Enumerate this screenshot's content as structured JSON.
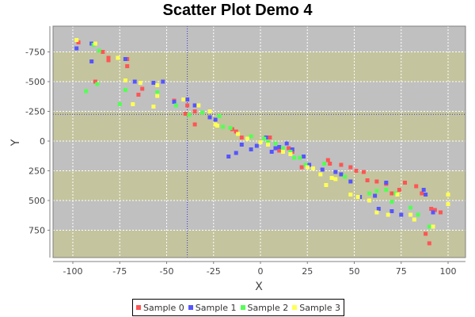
{
  "chart": {
    "title": "Scatter Plot Demo 4",
    "xlabel": "X",
    "ylabel": "Y"
  },
  "colors": {
    "band_gray": "#c0c0c0",
    "band_olive": "#c4c49e",
    "gridline": "#ffffff",
    "crosshair": "#3b3bd6",
    "axis_line": "#808080",
    "plot_border": "#808080"
  },
  "legend": {
    "items": [
      {
        "label": "Sample 0",
        "color": "#ff5555"
      },
      {
        "label": "Sample 1",
        "color": "#5555ff"
      },
      {
        "label": "Sample 2",
        "color": "#55ff55"
      },
      {
        "label": "Sample 3",
        "color": "#ffff55"
      }
    ]
  },
  "chart_data": {
    "type": "scatter",
    "title": "Scatter Plot Demo 4",
    "xlabel": "X",
    "ylabel": "Y",
    "xlim": [
      -105,
      105
    ],
    "ylim": [
      -940,
      980
    ],
    "y_inverted": true,
    "x_ticks": [
      -100,
      -75,
      -50,
      -25,
      0,
      25,
      50,
      75,
      100
    ],
    "x_tick_labels": [
      "-100",
      "-75",
      "-50",
      "-25",
      "0",
      "25",
      "50",
      "75",
      "100"
    ],
    "y_ticks": [
      -750,
      -500,
      -250,
      0,
      250,
      500,
      750
    ],
    "y_tick_labels": [
      "-750",
      "-500",
      "-250",
      "0",
      "250",
      "500",
      "750"
    ],
    "grid": true,
    "crosshair": {
      "x": -39,
      "y": -225
    },
    "legend_position": "bottom",
    "series": [
      {
        "name": "Sample 0",
        "color": "#ff5555",
        "points": [
          [
            -97,
            -830
          ],
          [
            -84,
            -750
          ],
          [
            -81,
            -700
          ],
          [
            -71,
            -690
          ],
          [
            -71,
            -630
          ],
          [
            -63,
            -440
          ],
          [
            -88,
            -500
          ],
          [
            -81,
            -680
          ],
          [
            -65,
            -390
          ],
          [
            -46,
            -340
          ],
          [
            -39,
            -300
          ],
          [
            -40,
            -230
          ],
          [
            -35,
            -250
          ],
          [
            -35,
            -140
          ],
          [
            -24,
            -140
          ],
          [
            -15,
            -100
          ],
          [
            -13,
            -80
          ],
          [
            -10,
            -30
          ],
          [
            5,
            -30
          ],
          [
            10,
            80
          ],
          [
            15,
            60
          ],
          [
            17,
            90
          ],
          [
            22,
            220
          ],
          [
            25,
            200
          ],
          [
            36,
            160
          ],
          [
            37,
            190
          ],
          [
            43,
            200
          ],
          [
            48,
            220
          ],
          [
            51,
            250
          ],
          [
            55,
            260
          ],
          [
            57,
            330
          ],
          [
            62,
            340
          ],
          [
            67,
            360
          ],
          [
            70,
            440
          ],
          [
            74,
            410
          ],
          [
            77,
            350
          ],
          [
            83,
            380
          ],
          [
            86,
            440
          ],
          [
            91,
            570
          ],
          [
            93,
            580
          ],
          [
            96,
            600
          ],
          [
            88,
            780
          ],
          [
            90,
            860
          ]
        ]
      },
      {
        "name": "Sample 1",
        "color": "#5555ff",
        "points": [
          [
            -98,
            -780
          ],
          [
            -90,
            -820
          ],
          [
            -90,
            -670
          ],
          [
            -72,
            -690
          ],
          [
            -67,
            -500
          ],
          [
            -52,
            -500
          ],
          [
            -57,
            -490
          ],
          [
            -46,
            -330
          ],
          [
            -35,
            -300
          ],
          [
            -39,
            -350
          ],
          [
            -27,
            -200
          ],
          [
            -24,
            -180
          ],
          [
            -17,
            130
          ],
          [
            -13,
            100
          ],
          [
            -10,
            30
          ],
          [
            -5,
            70
          ],
          [
            -2,
            40
          ],
          [
            3,
            -30
          ],
          [
            6,
            90
          ],
          [
            8,
            60
          ],
          [
            10,
            50
          ],
          [
            14,
            20
          ],
          [
            17,
            70
          ],
          [
            23,
            130
          ],
          [
            26,
            200
          ],
          [
            33,
            240
          ],
          [
            40,
            260
          ],
          [
            43,
            280
          ],
          [
            48,
            340
          ],
          [
            53,
            470
          ],
          [
            61,
            460
          ],
          [
            63,
            570
          ],
          [
            67,
            350
          ],
          [
            70,
            590
          ],
          [
            75,
            620
          ],
          [
            87,
            410
          ],
          [
            92,
            600
          ],
          [
            88,
            450
          ]
        ]
      },
      {
        "name": "Sample 2",
        "color": "#55ff55",
        "points": [
          [
            -93,
            -420
          ],
          [
            -86,
            -760
          ],
          [
            -89,
            -810
          ],
          [
            -87,
            -480
          ],
          [
            -75,
            -310
          ],
          [
            -72,
            -430
          ],
          [
            -55,
            -410
          ],
          [
            -45,
            -300
          ],
          [
            -38,
            -220
          ],
          [
            -31,
            -240
          ],
          [
            -22,
            -210
          ],
          [
            -20,
            -120
          ],
          [
            -16,
            -110
          ],
          [
            -5,
            -40
          ],
          [
            2,
            -20
          ],
          [
            4,
            10
          ],
          [
            8,
            20
          ],
          [
            12,
            60
          ],
          [
            16,
            90
          ],
          [
            18,
            140
          ],
          [
            21,
            140
          ],
          [
            24,
            200
          ],
          [
            34,
            190
          ],
          [
            45,
            300
          ],
          [
            58,
            440
          ],
          [
            62,
            420
          ],
          [
            67,
            410
          ],
          [
            70,
            510
          ],
          [
            72,
            440
          ],
          [
            80,
            560
          ],
          [
            84,
            620
          ],
          [
            90,
            720
          ]
        ]
      },
      {
        "name": "Sample 3",
        "color": "#ffff55",
        "points": [
          [
            -98,
            -850
          ],
          [
            -88,
            -820
          ],
          [
            -76,
            -700
          ],
          [
            -72,
            -510
          ],
          [
            -64,
            -490
          ],
          [
            -68,
            -310
          ],
          [
            -57,
            -290
          ],
          [
            -55,
            -470
          ],
          [
            -55,
            -380
          ],
          [
            -41,
            -350
          ],
          [
            -33,
            -300
          ],
          [
            -27,
            -250
          ],
          [
            -24,
            -140
          ],
          [
            -23,
            -130
          ],
          [
            -12,
            -60
          ],
          [
            -7,
            -20
          ],
          [
            0,
            10
          ],
          [
            4,
            30
          ],
          [
            12,
            90
          ],
          [
            16,
            110
          ],
          [
            25,
            220
          ],
          [
            28,
            230
          ],
          [
            32,
            280
          ],
          [
            35,
            370
          ],
          [
            38,
            310
          ],
          [
            40,
            320
          ],
          [
            48,
            450
          ],
          [
            52,
            470
          ],
          [
            58,
            500
          ],
          [
            62,
            600
          ],
          [
            68,
            620
          ],
          [
            73,
            450
          ],
          [
            80,
            620
          ],
          [
            82,
            660
          ],
          [
            92,
            720
          ],
          [
            100,
            450
          ],
          [
            100,
            530
          ]
        ]
      }
    ]
  }
}
